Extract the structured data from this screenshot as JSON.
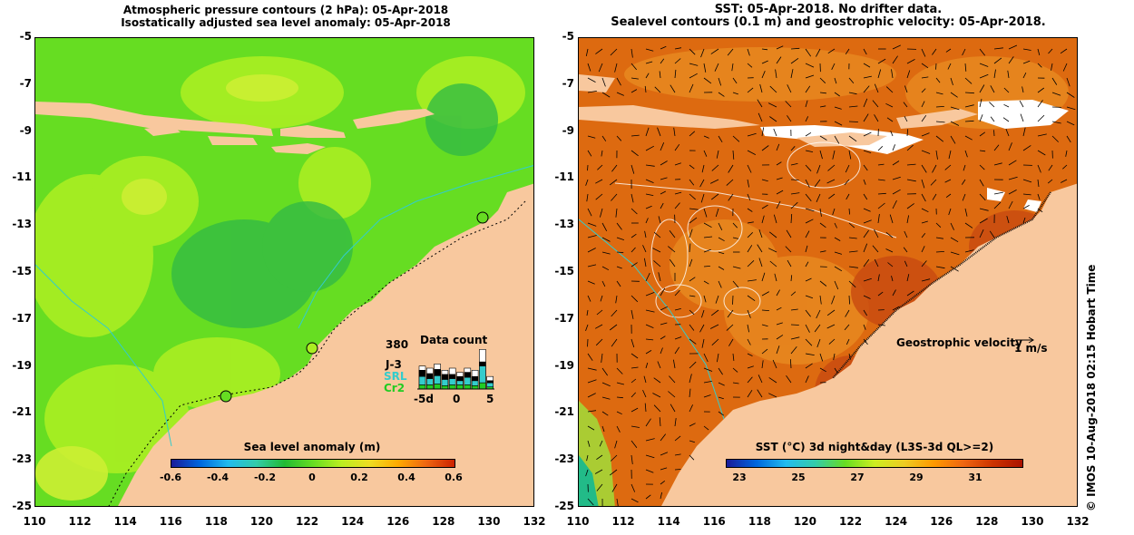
{
  "left_panel": {
    "title_line1": "Atmospheric pressure contours (2 hPa): 05-Apr-2018",
    "title_line2": "Isostatically adjusted sea level anomaly: 05-Apr-2018",
    "y_ticks": [
      "-5",
      "-7",
      "-9",
      "-11",
      "-13",
      "-15",
      "-17",
      "-19",
      "-21",
      "-23",
      "-25"
    ],
    "x_ticks": [
      "110",
      "112",
      "114",
      "116",
      "118",
      "120",
      "122",
      "124",
      "126",
      "128",
      "130",
      "132"
    ],
    "colorbar_title": "Sea level anomaly (m)",
    "colorbar_ticks": [
      "-0.6",
      "-0.4",
      "-0.2",
      "0",
      "0.2",
      "0.4",
      "0.6"
    ],
    "data_count": {
      "title": "Data count",
      "max_label": "380",
      "series": [
        {
          "name": "J-3",
          "color": "#000000"
        },
        {
          "name": "SRL",
          "color": "#33cccc"
        },
        {
          "name": "Cr2",
          "color": "#22cc22"
        }
      ],
      "x_labels": [
        "-5d",
        "0",
        "5"
      ],
      "bars": [
        {
          "total": 0.55,
          "j3": 0.15,
          "srl": 0.2,
          "cr2": 0.1
        },
        {
          "total": 0.5,
          "j3": 0.12,
          "srl": 0.15,
          "cr2": 0.1
        },
        {
          "total": 0.6,
          "j3": 0.15,
          "srl": 0.2,
          "cr2": 0.12
        },
        {
          "total": 0.45,
          "j3": 0.12,
          "srl": 0.15,
          "cr2": 0.08
        },
        {
          "total": 0.5,
          "j3": 0.1,
          "srl": 0.15,
          "cr2": 0.1
        },
        {
          "total": 0.4,
          "j3": 0.1,
          "srl": 0.1,
          "cr2": 0.1
        },
        {
          "total": 0.5,
          "j3": 0.12,
          "srl": 0.18,
          "cr2": 0.1
        },
        {
          "total": 0.45,
          "j3": 0.1,
          "srl": 0.12,
          "cr2": 0.08
        },
        {
          "total": 0.95,
          "j3": 0.1,
          "srl": 0.4,
          "cr2": 0.15
        },
        {
          "total": 0.3,
          "j3": 0.05,
          "srl": 0.1,
          "cr2": 0.05
        }
      ]
    }
  },
  "right_panel": {
    "title_line1": "SST: 05-Apr-2018. No drifter data.",
    "title_line2": "Sealevel contours (0.1 m) and geostrophic velocity: 05-Apr-2018.",
    "y_ticks": [
      "-5",
      "-7",
      "-9",
      "-11",
      "-13",
      "-15",
      "-17",
      "-19",
      "-21",
      "-23",
      "-25"
    ],
    "x_ticks": [
      "110",
      "112",
      "114",
      "116",
      "118",
      "120",
      "122",
      "124",
      "126",
      "128",
      "130",
      "132"
    ],
    "velocity_legend": "Geostrophic velocity",
    "velocity_scale": "1 m/s",
    "colorbar_title": "SST (°C) 3d night&day (L3S-3d QL>=2)",
    "colorbar_ticks": [
      "23",
      "25",
      "27",
      "29",
      "31"
    ]
  },
  "credit": "© IMOS 10-Aug-2018 02:15 Hobart Time",
  "colors": {
    "land": "#f8c89e",
    "sla_base": "#66dd22",
    "sst_base": "#dd6a10",
    "coast_line": "#33cccc"
  }
}
